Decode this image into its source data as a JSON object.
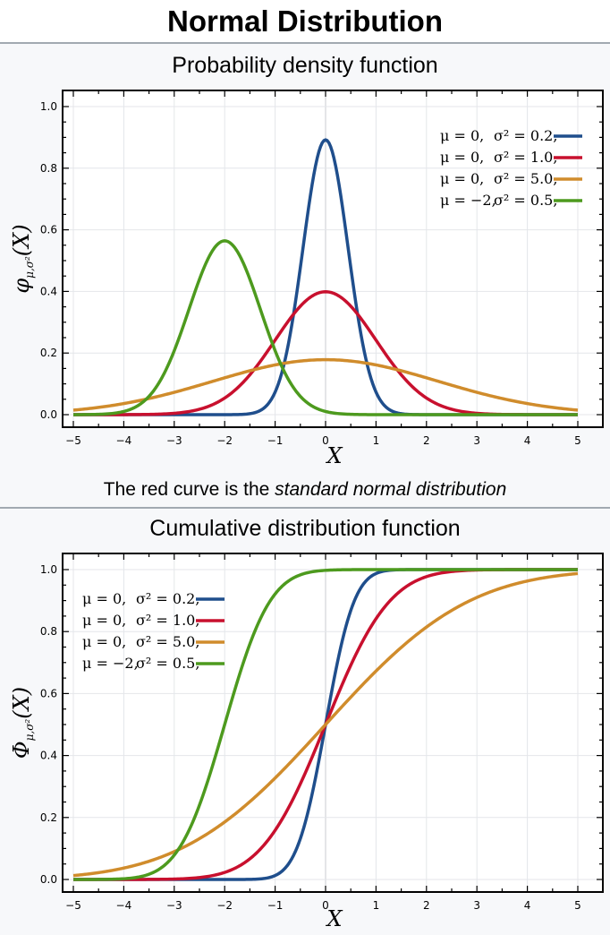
{
  "page_title": "Normal Distribution",
  "caption": {
    "prefix": "The red curve is the ",
    "emphasis": "standard normal distribution"
  },
  "chart_data": [
    {
      "type": "line",
      "title": "Probability density function",
      "xlabel": "X",
      "ylabel_main": "φ",
      "ylabel_sub": "μ,σ²",
      "ylabel_arg": "(X)",
      "function": "pdf",
      "xlim": [
        -5,
        5
      ],
      "ylim": [
        0,
        1.0
      ],
      "x_ticks": [
        "−5",
        "−4",
        "−3",
        "−2",
        "−1",
        "0",
        "1",
        "2",
        "3",
        "4",
        "5"
      ],
      "y_ticks": [
        "0.0",
        "0.2",
        "0.4",
        "0.6",
        "0.8",
        "1.0"
      ],
      "grid": true,
      "legend_position": "top-right",
      "series": [
        {
          "mu_label": "μ = 0,",
          "var_label": "σ² = 0.2,",
          "mu": 0,
          "variance": 0.2,
          "color": "#1f4e8c"
        },
        {
          "mu_label": "μ = 0,",
          "var_label": "σ² = 1.0,",
          "mu": 0,
          "variance": 1.0,
          "color": "#c8102e"
        },
        {
          "mu_label": "μ = 0,",
          "var_label": "σ² = 5.0,",
          "mu": 0,
          "variance": 5.0,
          "color": "#d08c2c"
        },
        {
          "mu_label": "μ = −2,",
          "var_label": "σ² = 0.5,",
          "mu": -2,
          "variance": 0.5,
          "color": "#4d9a1e"
        }
      ]
    },
    {
      "type": "line",
      "title": "Cumulative distribution function",
      "xlabel": "X",
      "ylabel_main": "Φ",
      "ylabel_sub": "μ,σ²",
      "ylabel_arg": "(X)",
      "function": "cdf",
      "xlim": [
        -5,
        5
      ],
      "ylim": [
        0,
        1.0
      ],
      "x_ticks": [
        "−5",
        "−4",
        "−3",
        "−2",
        "−1",
        "0",
        "1",
        "2",
        "3",
        "4",
        "5"
      ],
      "y_ticks": [
        "0.0",
        "0.2",
        "0.4",
        "0.6",
        "0.8",
        "1.0"
      ],
      "grid": true,
      "legend_position": "top-left",
      "series": [
        {
          "mu_label": "μ = 0,",
          "var_label": "σ² = 0.2,",
          "mu": 0,
          "variance": 0.2,
          "color": "#1f4e8c"
        },
        {
          "mu_label": "μ = 0,",
          "var_label": "σ² = 1.0,",
          "mu": 0,
          "variance": 1.0,
          "color": "#c8102e"
        },
        {
          "mu_label": "μ = 0,",
          "var_label": "σ² = 5.0,",
          "mu": 0,
          "variance": 5.0,
          "color": "#d08c2c"
        },
        {
          "mu_label": "μ = −2,",
          "var_label": "σ² = 0.5,",
          "mu": -2,
          "variance": 0.5,
          "color": "#4d9a1e"
        }
      ]
    }
  ]
}
